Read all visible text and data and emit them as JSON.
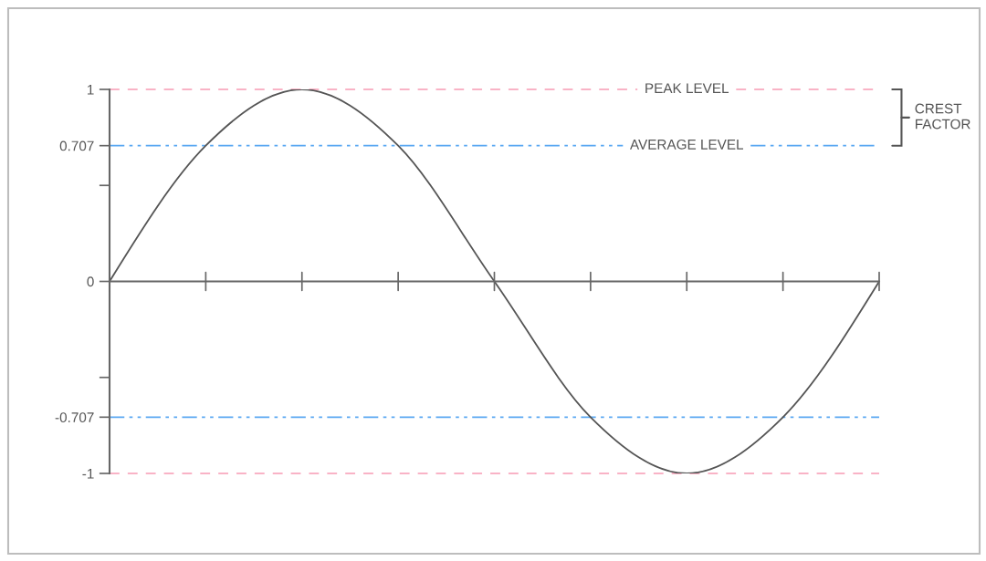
{
  "chart_data": {
    "type": "line",
    "categories": [
      null,
      null,
      null,
      null,
      null,
      null,
      null,
      null,
      null
    ],
    "series": [
      {
        "color": "#555555",
        "values": [
          0,
          0.707,
          1,
          0.707,
          0,
          -0.707,
          -1,
          -0.707,
          0
        ]
      }
    ],
    "ylim": [
      -1,
      1
    ],
    "yticks": [
      1,
      0.707,
      {
        "value": 0.5,
        "label": null
      },
      0,
      {
        "value": -0.5,
        "label": null
      },
      -0.707,
      -1
    ],
    "ref_lines": [
      {
        "axis": "y",
        "value": 1,
        "label": "PEAK LEVEL",
        "color": "#f9b3c6",
        "line_style": "dashed"
      },
      {
        "axis": "y",
        "value": 0.707,
        "label": "AVERAGE LEVEL",
        "color": "#5aa8f2",
        "line_style": "dashdot"
      },
      {
        "axis": "y",
        "value": -0.707,
        "color": "#5aa8f2",
        "line_style": "dashdot"
      },
      {
        "axis": "y",
        "value": -1,
        "color": "#f9b3c6",
        "line_style": "dashed"
      }
    ],
    "annotations": [
      "CREST\nFACTOR"
    ]
  }
}
